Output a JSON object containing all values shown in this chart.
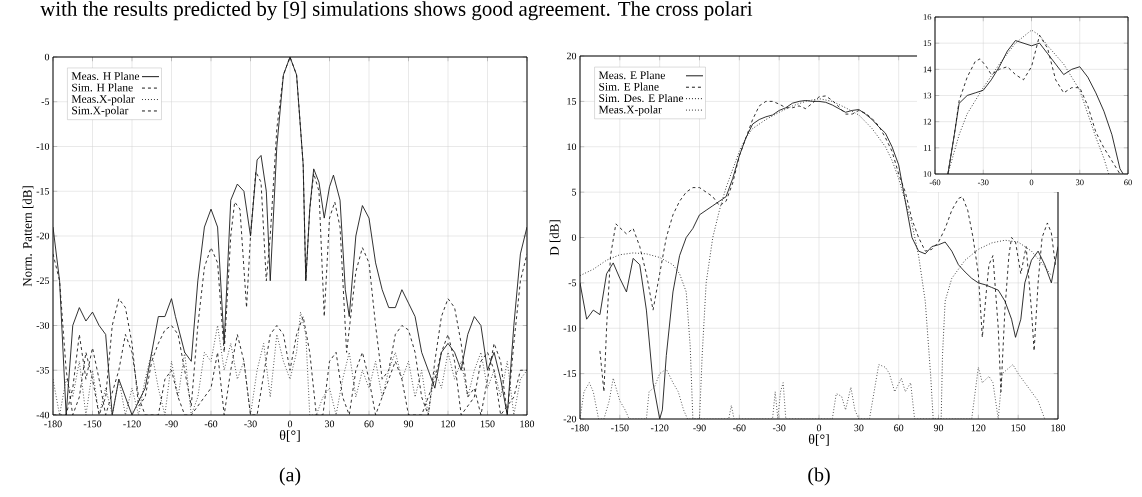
{
  "chart_data": [
    {
      "type": "line",
      "subtitle": "(a)",
      "xlabel": "θ[°]",
      "ylabel": "Norm. Pattern  [dB]",
      "annotations": [
        "with the results predicted by [9] simulations shows good agreement. The cross polari"
      ],
      "xlim": [
        -180,
        180
      ],
      "ylim": [
        -40,
        0
      ],
      "xticks": [
        -180,
        -150,
        -120,
        -90,
        -60,
        -30,
        0,
        30,
        60,
        90,
        120,
        150,
        180
      ],
      "yticks": [
        -40,
        -35,
        -30,
        -25,
        -20,
        -15,
        -10,
        -5,
        0
      ],
      "grid": true,
      "legend": "top left",
      "series": [
        {
          "name": "Meas. H Plane",
          "color": "#1a1a1a",
          "line_style": "solid",
          "x": [
            -180,
            -175,
            -170,
            -165,
            -160,
            -155,
            -150,
            -145,
            -140,
            -135,
            -130,
            -125,
            -120,
            -110,
            -100,
            -95,
            -90,
            -87,
            -80,
            -75,
            -70,
            -65,
            -60,
            -55,
            -50,
            -45,
            -40,
            -35,
            -30,
            -25,
            -22,
            -18,
            -15,
            -10,
            -5,
            0,
            5,
            10,
            12,
            15,
            18,
            22,
            26,
            30,
            33,
            38,
            42,
            45,
            50,
            55,
            60,
            65,
            70,
            75,
            80,
            85,
            90,
            95,
            100,
            105,
            110,
            115,
            120,
            125,
            130,
            135,
            140,
            145,
            150,
            155,
            160,
            165,
            170,
            175,
            180
          ],
          "values": [
            -19,
            -25,
            -40,
            -30,
            -28,
            -29.5,
            -28.5,
            -30,
            -31,
            -40,
            -36,
            -38,
            -40,
            -37,
            -29,
            -29,
            -27,
            -29,
            -33,
            -34,
            -25,
            -19,
            -17,
            -19,
            -32,
            -16,
            -14.2,
            -15,
            -20,
            -11.5,
            -11,
            -15,
            -25,
            -10,
            -2,
            0,
            -2,
            -12,
            -25,
            -17,
            -12.5,
            -14,
            -18,
            -14.5,
            -13.2,
            -16,
            -26,
            -29,
            -20,
            -16.6,
            -18,
            -23,
            -26,
            -28,
            -28,
            -26,
            -27.5,
            -29,
            -33,
            -35,
            -37,
            -33,
            -32,
            -33,
            -35,
            -31,
            -29,
            -30,
            -35,
            -33,
            -36,
            -40,
            -30,
            -22,
            -19
          ]
        },
        {
          "name": "Sim. H Plane",
          "color": "#1a1a1a",
          "line_style": "dashed",
          "x": [
            -180,
            -175,
            -170,
            -165,
            -160,
            -155,
            -150,
            -145,
            -140,
            -135,
            -130,
            -125,
            -120,
            -115,
            -110,
            -105,
            -100,
            -95,
            -90,
            -85,
            -80,
            -75,
            -70,
            -65,
            -60,
            -55,
            -50,
            -45,
            -42,
            -38,
            -33,
            -30,
            -26,
            -22,
            -18,
            -15,
            -10,
            -5,
            0,
            5,
            10,
            12,
            15,
            18,
            22,
            26,
            30,
            34,
            38,
            43,
            50,
            55,
            60,
            65,
            70,
            75,
            80,
            85,
            90,
            95,
            100,
            105,
            110,
            115,
            120,
            125,
            130,
            135,
            140,
            145,
            150,
            155,
            160,
            165,
            170,
            175,
            180
          ],
          "values": [
            -22,
            -25,
            -35,
            -40,
            -38,
            -33,
            -36,
            -40,
            -38,
            -30,
            -27,
            -28,
            -32,
            -39,
            -38,
            -34,
            -32,
            -30.5,
            -30,
            -31,
            -35,
            -39,
            -30,
            -23.5,
            -21.3,
            -23,
            -33,
            -20,
            -16.2,
            -17,
            -28,
            -20,
            -12.8,
            -14,
            -25,
            -20,
            -8,
            -2,
            0,
            -2,
            -12,
            -25,
            -17,
            -13,
            -15,
            -29,
            -18,
            -16.2,
            -19,
            -33,
            -24,
            -21.3,
            -23,
            -30,
            -36,
            -35,
            -31,
            -30,
            -30.5,
            -33,
            -38,
            -40,
            -34,
            -29,
            -27,
            -28,
            -32,
            -38,
            -37,
            -40,
            -36,
            -32,
            -34,
            -40,
            -32,
            -25,
            -22
          ]
        },
        {
          "name": "Meas.X-polar",
          "color": "#333333",
          "line_style": "dotted",
          "x": [
            -180,
            -175,
            -170,
            -165,
            -160,
            -155,
            -150,
            -145,
            -140,
            -135,
            -130,
            -125,
            -120,
            -115,
            -110,
            -105,
            -100,
            -95,
            -90,
            -85,
            -80,
            -75,
            -70,
            -65,
            -60,
            -55,
            -50,
            -45,
            -40,
            -35,
            -30,
            -25,
            -20,
            -15,
            -10,
            -5,
            0,
            5,
            8,
            12,
            15,
            20,
            25,
            30,
            35,
            40,
            45,
            50,
            55,
            60,
            65,
            70,
            75,
            80,
            85,
            90,
            95,
            100,
            105,
            110,
            115,
            120,
            125,
            130,
            135,
            140,
            145,
            150,
            155,
            160,
            165,
            170,
            175,
            180
          ],
          "values": [
            -36,
            -40,
            -36,
            -38,
            -34,
            -40,
            -35,
            -40,
            -37,
            -40,
            -36,
            -40,
            -37,
            -40,
            -36,
            -33,
            -37,
            -40,
            -34,
            -38,
            -33,
            -40,
            -38,
            -33,
            -34,
            -30,
            -35,
            -32,
            -36,
            -34,
            -40,
            -35,
            -32,
            -38,
            -31,
            -34,
            -36,
            -33,
            -28.5,
            -31,
            -40,
            -40,
            -38,
            -37,
            -40,
            -36,
            -33,
            -38,
            -35,
            -37,
            -34,
            -38,
            -35,
            -33,
            -36,
            -34,
            -38,
            -35,
            -40,
            -35,
            -37,
            -33,
            -36,
            -34,
            -38,
            -35,
            -33,
            -37,
            -35,
            -38,
            -34,
            -40,
            -36,
            -35
          ]
        },
        {
          "name": "Sim.X-polar",
          "color": "#1a1a1a",
          "line_style": "dashed",
          "x": [
            -180,
            -170,
            -165,
            -160,
            -155,
            -150,
            -145,
            -140,
            -130,
            -125,
            -120,
            -115,
            -110,
            -100,
            -95,
            -90,
            -85,
            -80,
            -75,
            -60,
            -55,
            -50,
            -45,
            -40,
            -35,
            -30,
            -25,
            -15,
            -10,
            -5,
            0,
            5,
            10,
            15,
            20,
            25,
            30,
            35,
            40,
            45,
            50,
            55,
            60,
            65,
            70,
            80,
            85,
            90,
            100,
            110,
            115,
            120,
            125,
            130,
            140,
            145,
            150,
            155,
            160,
            170,
            175,
            180
          ],
          "values": [
            -40,
            -40,
            -37,
            -31,
            -36,
            -32.5,
            -36,
            -40,
            -35,
            -31,
            -33,
            -38,
            -40,
            -40,
            -36,
            -35,
            -38,
            -40,
            -40,
            -37,
            -33,
            -40,
            -35,
            -31,
            -34,
            -40,
            -40,
            -31,
            -30,
            -31,
            -35,
            -31,
            -29,
            -33,
            -40,
            -40,
            -34,
            -33,
            -38,
            -40,
            -35,
            -33,
            -36,
            -40,
            -38,
            -34,
            -36,
            -40,
            -40,
            -36,
            -33,
            -31,
            -34,
            -40,
            -38,
            -34,
            -33,
            -35,
            -40,
            -38,
            -35,
            -35
          ]
        }
      ]
    },
    {
      "type": "line",
      "subtitle": "(b)",
      "xlabel": "θ[°]",
      "ylabel": "D [dB]",
      "xlim": [
        -180,
        180
      ],
      "ylim": [
        -20,
        20
      ],
      "xticks": [
        -180,
        -150,
        -120,
        -90,
        -60,
        -30,
        0,
        30,
        60,
        90,
        120,
        150,
        180
      ],
      "yticks": [
        -20,
        -15,
        -10,
        -5,
        0,
        5,
        10,
        15,
        20
      ],
      "grid": true,
      "legend": "top left",
      "series": [
        {
          "name": "Meas. E Plane",
          "color": "#1a1a1a",
          "line_style": "solid",
          "x": [
            -180,
            -175,
            -170,
            -165,
            -160,
            -155,
            -150,
            -145,
            -140,
            -135,
            -130,
            -125,
            -120,
            -118,
            -115,
            -110,
            -105,
            -100,
            -95,
            -90,
            -85,
            -80,
            -75,
            -70,
            -65,
            -60,
            -55,
            -50,
            -45,
            -40,
            -35,
            -30,
            -25,
            -20,
            -15,
            -10,
            -5,
            0,
            5,
            10,
            15,
            20,
            25,
            30,
            35,
            40,
            45,
            50,
            55,
            60,
            65,
            70,
            75,
            80,
            85,
            90,
            95,
            100,
            105,
            110,
            115,
            120,
            125,
            130,
            135,
            140,
            145,
            148,
            152,
            155,
            160,
            165,
            170,
            175,
            180
          ],
          "values": [
            -5,
            -9,
            -8,
            -8.5,
            -4,
            -2.8,
            -4.5,
            -6,
            -2.3,
            -3,
            -8,
            -16,
            -20,
            -19,
            -13,
            -6,
            -2,
            0,
            1,
            2.5,
            3,
            3.5,
            4,
            4.5,
            6.5,
            9,
            11,
            12.5,
            13,
            13.3,
            13.5,
            14,
            14.3,
            14.8,
            15,
            15.1,
            15,
            15,
            14.9,
            14.6,
            14.2,
            13.8,
            14,
            14.1,
            13.6,
            13,
            12.2,
            11.5,
            10,
            8,
            4,
            0,
            -1.5,
            -1.8,
            -1,
            -0.8,
            -0.5,
            -1.5,
            -3,
            -3.8,
            -4.5,
            -5,
            -5.2,
            -5.5,
            -5.8,
            -7,
            -9,
            -11,
            -9,
            -5,
            -2.5,
            -1.5,
            -3,
            -5,
            -1
          ]
        },
        {
          "name": "Sim. E Plane",
          "color": "#1a1a1a",
          "line_style": "dashed",
          "x": [
            -165,
            -162,
            -160,
            -157,
            -153,
            -148,
            -145,
            -140,
            -135,
            -130,
            -125,
            -120,
            -115,
            -110,
            -105,
            -100,
            -95,
            -90,
            -85,
            -80,
            -75,
            -70,
            -65,
            -60,
            -55,
            -50,
            -45,
            -40,
            -35,
            -30,
            -25,
            -20,
            -15,
            -10,
            -5,
            0,
            5,
            10,
            15,
            20,
            25,
            30,
            35,
            40,
            45,
            50,
            55,
            60,
            65,
            70,
            75,
            80,
            85,
            90,
            95,
            100,
            105,
            108,
            112,
            116,
            120,
            123,
            126,
            128,
            131,
            135,
            137,
            140,
            143,
            145,
            148,
            152,
            156,
            160,
            162,
            165,
            168,
            172,
            175,
            178
          ],
          "values": [
            -12.5,
            -17,
            -10,
            -2,
            1.5,
            0.8,
            0.4,
            1,
            -1,
            -4,
            -8,
            -4,
            0,
            2.5,
            4,
            5,
            5.5,
            5.5,
            5,
            4.5,
            3.5,
            4,
            6,
            9,
            11,
            13,
            14.5,
            15,
            15,
            14.7,
            14.3,
            14.3,
            14.5,
            14.2,
            14.8,
            15.5,
            15.6,
            15.1,
            14.4,
            13.6,
            13.6,
            14,
            13.7,
            13.1,
            12.3,
            11,
            9.5,
            7,
            5,
            2,
            0,
            -1.5,
            -1.3,
            -0.5,
            1,
            3,
            4.3,
            4.5,
            3,
            0,
            -4,
            -11,
            -6,
            -3,
            -2,
            -10,
            -17,
            -8,
            -2,
            0,
            -0.5,
            -4,
            -1,
            -8,
            -12.5,
            -5,
            0,
            1.6,
            0.5,
            -3
          ]
        },
        {
          "name": "Sim. Des. E Plane",
          "color": "#1a1a1a",
          "line_style": "dotted",
          "x": [
            -180,
            -170,
            -160,
            -150,
            -140,
            -130,
            -120,
            -110,
            -105,
            -100,
            -97,
            -95,
            -90,
            -88,
            -85,
            -80,
            -75,
            -70,
            -65,
            -60,
            -55,
            -50,
            -45,
            -40,
            -30,
            -20,
            -10,
            0,
            10,
            20,
            30,
            40,
            50,
            55,
            60,
            65,
            70,
            75,
            80,
            84,
            86,
            92,
            93,
            95,
            100,
            110,
            120,
            130,
            140,
            150,
            160,
            170,
            175
          ],
          "values": [
            -4.2,
            -3.5,
            -2.5,
            -1.9,
            -1.7,
            -1.8,
            -2.2,
            -3,
            -4,
            -6,
            -12,
            -20,
            -20,
            -13,
            -5,
            0,
            3,
            5.5,
            7.5,
            9.5,
            11,
            12,
            12.5,
            13,
            13.8,
            14.5,
            15,
            15.3,
            15,
            14.3,
            13.5,
            12,
            10,
            8.5,
            6.5,
            4,
            1.5,
            -2,
            -7,
            -15,
            -20,
            -20,
            -13,
            -7,
            -4.5,
            -2.5,
            -1.3,
            -0.6,
            -0.3,
            -0.5,
            -1.5,
            -3.2,
            -4.2
          ]
        },
        {
          "name": "Meas.X-polar",
          "color": "#333333",
          "line_style": "dotted",
          "x": [
            -180,
            -177,
            -173,
            -170,
            -166,
            -162,
            -158,
            -155,
            -150,
            -146,
            -143,
            -130,
            -128,
            -124,
            -120,
            -115,
            -110,
            -106,
            -102,
            -99,
            -68,
            -66,
            -64,
            -35,
            -33,
            -31,
            -29,
            -27,
            -25,
            -20,
            10,
            13,
            17,
            20,
            24,
            27,
            30,
            38,
            45,
            50,
            53,
            57,
            62,
            65,
            69,
            72,
            115,
            120,
            123,
            128,
            131,
            135,
            138,
            142,
            146,
            150,
            155,
            160,
            165,
            170
          ],
          "values": [
            -20,
            -17,
            -16,
            -17,
            -20,
            -20,
            -18,
            -15.5,
            -18,
            -19,
            -20,
            -20,
            -17,
            -16.5,
            -15,
            -14.5,
            -16,
            -17,
            -19,
            -20,
            -20,
            -18.5,
            -20,
            -20,
            -17,
            -20,
            -17,
            -16,
            -20,
            -20,
            -20,
            -17.2,
            -17.5,
            -19,
            -16.5,
            -19,
            -20,
            -20,
            -14,
            -14.3,
            -15,
            -17,
            -15.5,
            -17,
            -16,
            -20,
            -20,
            -14.3,
            -16,
            -15.3,
            -16,
            -20,
            -15,
            -14.5,
            -14,
            -15,
            -16,
            -17,
            -18,
            -20
          ]
        }
      ]
    },
    {
      "type": "line",
      "xlim": [
        -60,
        60
      ],
      "ylim": [
        10,
        16
      ],
      "xticks": [
        -60,
        -30,
        0,
        30,
        60
      ],
      "yticks": [
        10,
        11,
        12,
        13,
        14,
        15,
        16
      ],
      "grid": true,
      "series": [
        {
          "color": "#1a1a1a",
          "line_style": "solid",
          "x": [
            -52,
            -48,
            -45,
            -40,
            -35,
            -30,
            -25,
            -20,
            -15,
            -10,
            -5,
            0,
            5,
            10,
            15,
            20,
            25,
            30,
            35,
            40,
            45,
            50,
            55,
            57
          ],
          "values": [
            10,
            11.5,
            12.7,
            13,
            13.1,
            13.2,
            13.6,
            14.1,
            14.7,
            15.1,
            15,
            14.9,
            15,
            14.6,
            14.2,
            13.8,
            14,
            14.1,
            13.7,
            13.1,
            12.4,
            11.5,
            10.2,
            10
          ]
        },
        {
          "color": "#1a1a1a",
          "line_style": "dashed",
          "x": [
            -52,
            -48,
            -45,
            -40,
            -35,
            -32,
            -28,
            -25,
            -20,
            -15,
            -10,
            -5,
            0,
            5,
            10,
            15,
            20,
            25,
            30,
            35,
            40,
            45,
            50,
            55
          ],
          "values": [
            10,
            11.5,
            12.8,
            13.7,
            14.3,
            14.4,
            14.1,
            13.8,
            14,
            14.1,
            13.8,
            13.6,
            14.1,
            15.3,
            14.8,
            13.6,
            13.1,
            13.3,
            13.3,
            12.6,
            11.6,
            11,
            10.5,
            10
          ]
        },
        {
          "color": "#1a1a1a",
          "line_style": "dotted",
          "x": [
            -52,
            -45,
            -40,
            -35,
            -30,
            -20,
            -10,
            0,
            5,
            10,
            20,
            30,
            40,
            45,
            48
          ],
          "values": [
            10,
            11.5,
            12.3,
            12.8,
            13.3,
            14.2,
            15,
            15.5,
            15.3,
            14.9,
            14.2,
            13.2,
            11.4,
            10.6,
            10
          ]
        }
      ]
    }
  ]
}
